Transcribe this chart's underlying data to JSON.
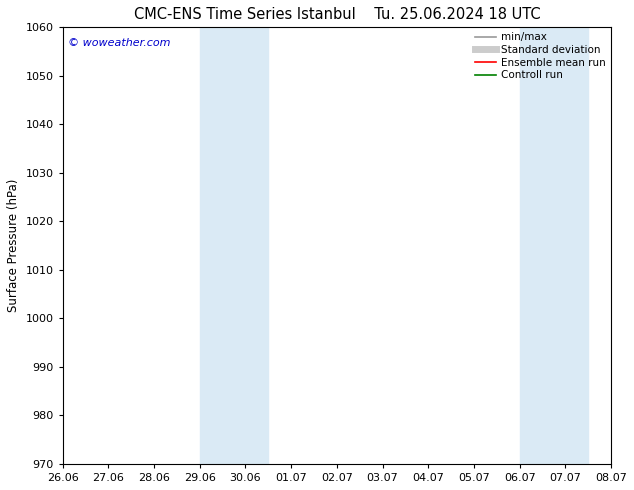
{
  "title_left": "CMC-ENS Time Series Istanbul",
  "title_right": "Tu. 25.06.2024 18 UTC",
  "ylabel": "Surface Pressure (hPa)",
  "ylim": [
    970,
    1060
  ],
  "yticks": [
    970,
    980,
    990,
    1000,
    1010,
    1020,
    1030,
    1040,
    1050,
    1060
  ],
  "x_labels": [
    "26.06",
    "27.06",
    "28.06",
    "29.06",
    "30.06",
    "01.07",
    "02.07",
    "03.07",
    "04.07",
    "05.07",
    "06.07",
    "07.07",
    "08.07"
  ],
  "x_positions": [
    0,
    1,
    2,
    3,
    4,
    5,
    6,
    7,
    8,
    9,
    10,
    11,
    12
  ],
  "xlim": [
    0,
    12
  ],
  "shaded_bands": [
    {
      "x_start": 3.0,
      "x_end": 4.5
    },
    {
      "x_start": 10.0,
      "x_end": 11.5
    }
  ],
  "band_color": "#daeaf5",
  "background_color": "#ffffff",
  "watermark": "© woweather.com",
  "watermark_color": "#0000cc",
  "legend_items": [
    {
      "label": "min/max",
      "color": "#999999",
      "lw": 1.2,
      "ls": "-"
    },
    {
      "label": "Standard deviation",
      "color": "#cccccc",
      "lw": 5,
      "ls": "-"
    },
    {
      "label": "Ensemble mean run",
      "color": "#ff0000",
      "lw": 1.2,
      "ls": "-"
    },
    {
      "label": "Controll run",
      "color": "#008000",
      "lw": 1.2,
      "ls": "-"
    }
  ],
  "title_fontsize": 10.5,
  "ylabel_fontsize": 8.5,
  "tick_fontsize": 8,
  "legend_fontsize": 7.5,
  "watermark_fontsize": 8
}
